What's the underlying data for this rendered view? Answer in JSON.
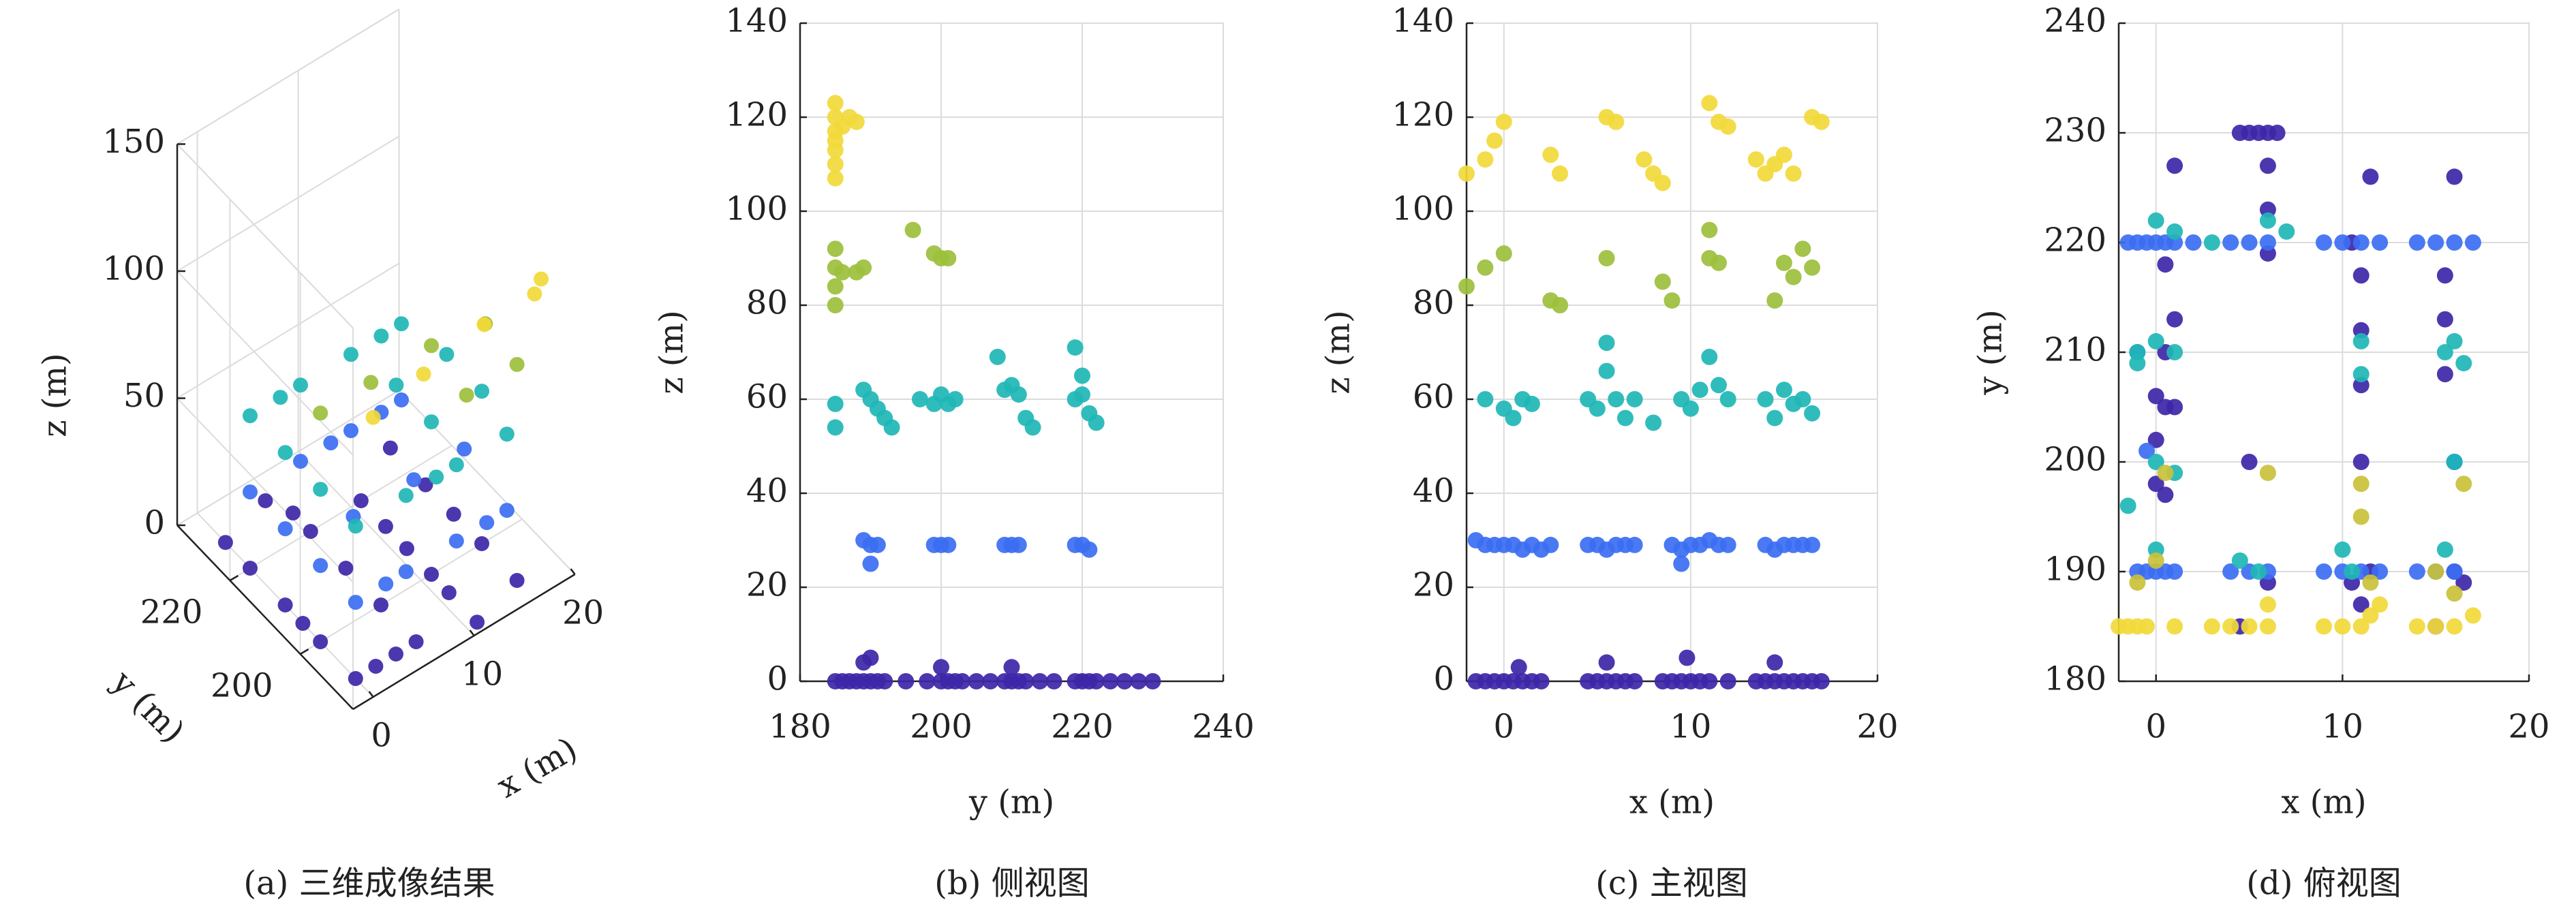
{
  "chart_data": [
    {
      "type": "scatter3d",
      "caption": "(a) 三维成像结果",
      "xlabel": "x (m)",
      "ylabel": "y (m)",
      "zlabel": "z (m)",
      "xlim": [
        -2,
        20
      ],
      "ylim": [
        185,
        235
      ],
      "zlim": [
        0,
        150
      ],
      "xticks": [
        0,
        10,
        20
      ],
      "yticks": [
        200,
        220
      ],
      "zticks": [
        0,
        50,
        100,
        150
      ],
      "grid": true,
      "series": [
        {
          "color": "#3e26a8",
          "x": [
            0,
            2,
            4,
            6,
            0,
            0,
            0,
            0,
            0,
            5,
            6,
            6,
            11,
            11,
            11,
            11,
            11,
            11,
            16,
            16,
            16,
            16,
            16,
            6,
            6
          ],
          "y": [
            190,
            190,
            190,
            190,
            200,
            205,
            210,
            220,
            227,
            230,
            225,
            220,
            187,
            195,
            200,
            207,
            213,
            220,
            190,
            200,
            208,
            216,
            226,
            200,
            210
          ],
          "z": [
            0,
            0,
            0,
            0,
            0,
            0,
            0,
            0,
            0,
            0,
            0,
            0,
            0,
            0,
            0,
            0,
            0,
            0,
            0,
            0,
            0,
            0,
            0,
            0,
            0
          ]
        },
        {
          "color": "#3b6ef2",
          "x": [
            0,
            5,
            10,
            15,
            0,
            0,
            0,
            5,
            10,
            15,
            16,
            11,
            5,
            3,
            13,
            8,
            13
          ],
          "y": [
            190,
            190,
            190,
            190,
            200,
            210,
            220,
            220,
            220,
            220,
            205,
            205,
            205,
            190,
            190,
            220,
            220
          ],
          "z": [
            30,
            30,
            30,
            30,
            30,
            30,
            30,
            30,
            30,
            30,
            30,
            30,
            30,
            30,
            30,
            30,
            30
          ]
        },
        {
          "color": "#1fb6b6",
          "x": [
            0,
            5,
            10,
            15,
            0,
            0,
            0,
            5,
            10,
            15,
            16,
            16,
            11,
            11,
            3,
            8,
            13
          ],
          "y": [
            190,
            190,
            190,
            190,
            200,
            210,
            220,
            220,
            220,
            220,
            200,
            210,
            200,
            210,
            220,
            190,
            220
          ],
          "z": [
            60,
            60,
            60,
            60,
            60,
            60,
            60,
            60,
            60,
            60,
            60,
            60,
            60,
            60,
            60,
            60,
            60
          ]
        },
        {
          "color": "#9cbf3c",
          "x": [
            0,
            5,
            11,
            16,
            16,
            11
          ],
          "y": [
            200,
            200,
            200,
            199,
            190,
            190
          ],
          "z": [
            90,
            90,
            90,
            88,
            85,
            85
          ]
        },
        {
          "color": "#f2d93a",
          "x": [
            0,
            5,
            11,
            16,
            17
          ],
          "y": [
            185,
            185,
            185,
            185,
            186
          ],
          "z": [
            110,
            115,
            120,
            120,
            122
          ]
        }
      ]
    },
    {
      "type": "scatter",
      "caption": "(b) 侧视图",
      "xlabel": "y (m)",
      "ylabel": "z (m)",
      "xlim": [
        180,
        240
      ],
      "ylim": [
        0,
        140
      ],
      "xticks": [
        180,
        200,
        220,
        240
      ],
      "yticks": [
        0,
        20,
        40,
        60,
        80,
        100,
        120,
        140
      ],
      "grid": true,
      "series": [
        {
          "color": "#3e26a8",
          "x": [
            185,
            186,
            187,
            188,
            189,
            190,
            191,
            192,
            195,
            198,
            200,
            201,
            202,
            203,
            205,
            207,
            209,
            210,
            211,
            212,
            214,
            216,
            219,
            220,
            221,
            222,
            224,
            226,
            228,
            230,
            189,
            190,
            200,
            210
          ],
          "values": [
            0,
            0,
            0,
            0,
            0,
            0,
            0,
            0,
            0,
            0,
            0,
            0,
            0,
            0,
            0,
            0,
            0,
            0,
            0,
            0,
            0,
            0,
            0,
            0,
            0,
            0,
            0,
            0,
            0,
            0,
            4,
            5,
            3,
            3
          ]
        },
        {
          "color": "#3b6ef2",
          "x": [
            189,
            190,
            191,
            190,
            199,
            200,
            201,
            209,
            210,
            211,
            219,
            220,
            221
          ],
          "values": [
            30,
            29,
            29,
            25,
            29,
            29,
            29,
            29,
            29,
            29,
            29,
            29,
            28
          ]
        },
        {
          "color": "#1fb6b6",
          "x": [
            185,
            185,
            189,
            190,
            191,
            192,
            193,
            197,
            199,
            200,
            201,
            202,
            208,
            209,
            210,
            211,
            212,
            213,
            219,
            220,
            221,
            222,
            219,
            220
          ],
          "values": [
            59,
            54,
            62,
            60,
            58,
            56,
            54,
            60,
            59,
            61,
            59,
            60,
            69,
            62,
            63,
            61,
            56,
            54,
            60,
            61,
            57,
            55,
            71,
            65
          ]
        },
        {
          "color": "#9cbf3c",
          "x": [
            185,
            185,
            185,
            185,
            186,
            188,
            189,
            196,
            199,
            200,
            201
          ],
          "values": [
            80,
            84,
            88,
            92,
            87,
            87,
            88,
            96,
            91,
            90,
            90
          ]
        },
        {
          "color": "#f2d93a",
          "x": [
            185,
            185,
            185,
            185,
            185,
            185,
            186,
            187,
            188,
            185
          ],
          "values": [
            107,
            110,
            113,
            117,
            120,
            123,
            118,
            120,
            119,
            115
          ]
        }
      ]
    },
    {
      "type": "scatter",
      "caption": "(c) 主视图",
      "xlabel": "x (m)",
      "ylabel": "z (m)",
      "xlim": [
        -2,
        20
      ],
      "ylim": [
        0,
        140
      ],
      "xticks": [
        0,
        10,
        20
      ],
      "yticks": [
        0,
        20,
        40,
        60,
        80,
        100,
        120,
        140
      ],
      "grid": true,
      "series": [
        {
          "color": "#3e26a8",
          "x": [
            -1.5,
            -1,
            -0.5,
            0,
            0.5,
            1,
            1.5,
            2,
            4.5,
            5,
            5.5,
            6,
            6.5,
            7,
            8.5,
            9,
            9.5,
            10,
            10.5,
            11,
            12,
            13.5,
            14,
            14.5,
            15,
            15.5,
            16,
            16.5,
            17,
            0.8,
            5.5,
            9.8,
            14.5
          ],
          "values": [
            0,
            0,
            0,
            0,
            0,
            0,
            0,
            0,
            0,
            0,
            0,
            0,
            0,
            0,
            0,
            0,
            0,
            0,
            0,
            0,
            0,
            0,
            0,
            0,
            0,
            0,
            0,
            0,
            0,
            3,
            4,
            5,
            4
          ]
        },
        {
          "color": "#3b6ef2",
          "x": [
            -1.5,
            -1,
            -0.5,
            0,
            0.5,
            1,
            1.5,
            2,
            2.5,
            4.5,
            5,
            5.5,
            6,
            6.5,
            7,
            9,
            9.5,
            10,
            10.5,
            11,
            11.5,
            12,
            14,
            14.5,
            15,
            15.5,
            16,
            16.5,
            9.5
          ],
          "values": [
            30,
            29,
            29,
            29,
            29,
            28,
            29,
            28,
            29,
            29,
            29,
            28,
            29,
            29,
            29,
            29,
            28,
            29,
            29,
            30,
            29,
            29,
            29,
            28,
            29,
            29,
            29,
            29,
            25
          ]
        },
        {
          "color": "#1fb6b6",
          "x": [
            -1,
            0,
            0.5,
            1,
            1.5,
            4.5,
            5,
            5.5,
            5.5,
            6,
            6.5,
            7,
            8,
            9.5,
            10,
            10.5,
            11,
            11.5,
            12,
            14,
            14.5,
            15,
            15.5,
            16,
            16.5
          ],
          "values": [
            60,
            58,
            56,
            60,
            59,
            60,
            58,
            72,
            66,
            60,
            56,
            60,
            55,
            60,
            58,
            62,
            69,
            63,
            60,
            60,
            56,
            62,
            59,
            60,
            57
          ]
        },
        {
          "color": "#9cbf3c",
          "x": [
            -2,
            -1,
            0,
            2.5,
            3,
            5.5,
            8.5,
            9,
            11,
            11,
            11.5,
            14.5,
            15,
            15.5,
            16,
            16.5
          ],
          "values": [
            84,
            88,
            91,
            81,
            80,
            90,
            85,
            81,
            96,
            90,
            89,
            81,
            89,
            86,
            92,
            88
          ]
        },
        {
          "color": "#f2d93a",
          "x": [
            -2,
            -1,
            -0.5,
            0,
            2.5,
            3,
            5.5,
            6,
            7.5,
            8,
            8.5,
            11,
            11.5,
            12,
            13.5,
            14,
            14.5,
            15,
            15.5,
            16.5,
            17
          ],
          "values": [
            108,
            111,
            115,
            119,
            112,
            108,
            120,
            119,
            111,
            108,
            106,
            123,
            119,
            118,
            111,
            108,
            110,
            112,
            108,
            120,
            119
          ]
        }
      ]
    },
    {
      "type": "scatter",
      "caption": "(d) 俯视图",
      "xlabel": "x (m)",
      "ylabel": "y (m)",
      "xlim": [
        -2,
        20
      ],
      "ylim": [
        180,
        240
      ],
      "xticks": [
        0,
        10,
        20
      ],
      "yticks": [
        180,
        190,
        200,
        210,
        220,
        230,
        240
      ],
      "grid": true,
      "series": [
        {
          "color": "#3e26a8",
          "x": [
            1,
            0.5,
            1,
            0.5,
            0,
            0.5,
            1,
            0,
            0,
            0.5,
            4.5,
            5,
            5.5,
            6,
            6.5,
            6,
            6,
            6,
            5,
            4.5,
            10.5,
            11,
            11,
            11,
            11,
            10.5,
            11,
            11.5,
            16,
            15.5,
            15.5,
            15.5,
            16,
            16,
            15,
            16.5,
            11.5,
            6
          ],
          "values": [
            227,
            218,
            213,
            210,
            206,
            205,
            205,
            202,
            198,
            197,
            230,
            230,
            230,
            230,
            230,
            227,
            223,
            219,
            200,
            185,
            220,
            217,
            212,
            207,
            200,
            189,
            187,
            226,
            226,
            217,
            213,
            208,
            200,
            190,
            185,
            189,
            190,
            189
          ]
        },
        {
          "color": "#3b6ef2",
          "x": [
            -1.5,
            -1,
            -0.5,
            0,
            0.5,
            1,
            2,
            -1,
            -0.5,
            0,
            0.5,
            1,
            4,
            5,
            6,
            4,
            5,
            6,
            9,
            10,
            11,
            12,
            14,
            15,
            16,
            17,
            9,
            10,
            11,
            12,
            14,
            15,
            16,
            -1,
            16,
            -0.5
          ],
          "values": [
            220,
            220,
            220,
            220,
            220,
            220,
            220,
            190,
            190,
            190,
            190,
            190,
            190,
            190,
            190,
            220,
            220,
            220,
            220,
            220,
            220,
            220,
            220,
            220,
            220,
            220,
            190,
            190,
            190,
            190,
            190,
            190,
            190,
            210,
            200,
            201
          ]
        },
        {
          "color": "#1fb6b6",
          "x": [
            0,
            1,
            3,
            6,
            7,
            -1,
            0,
            1,
            0,
            1,
            0,
            4.5,
            5.5,
            10,
            11,
            11,
            15.5,
            16.5,
            15.5,
            16,
            -1.5,
            -1,
            10.5,
            16
          ],
          "values": [
            222,
            221,
            220,
            222,
            221,
            209,
            211,
            210,
            200,
            199,
            192,
            191,
            190,
            192,
            211,
            208,
            210,
            209,
            192,
            200,
            196,
            210,
            190,
            211
          ]
        },
        {
          "color": "#c9c13a",
          "x": [
            -1,
            0.5,
            6,
            11,
            11,
            16.5,
            16,
            0,
            15,
            11.5
          ],
          "values": [
            189,
            199,
            199,
            198,
            195,
            198,
            188,
            191,
            190,
            189
          ]
        },
        {
          "color": "#f2d93a",
          "x": [
            -2,
            -1.5,
            -1,
            -0.5,
            3,
            4,
            5,
            6,
            6,
            9,
            10,
            11,
            11.5,
            12,
            14,
            15,
            16,
            17,
            1
          ],
          "values": [
            185,
            185,
            185,
            185,
            185,
            185,
            185,
            185,
            187,
            185,
            185,
            185,
            186,
            187,
            185,
            185,
            185,
            186,
            185
          ]
        }
      ]
    }
  ]
}
